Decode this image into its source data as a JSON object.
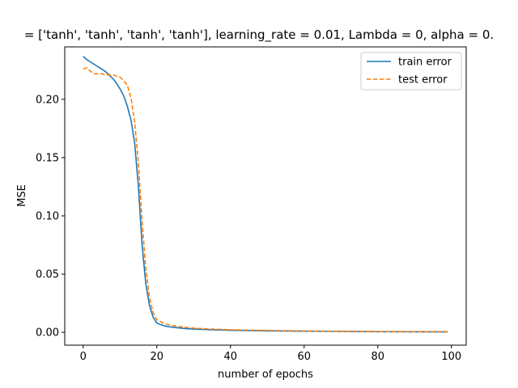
{
  "chart_data": {
    "type": "line",
    "title": "= ['tanh', 'tanh', 'tanh', 'tanh'], learning_rate = 0.01, Lambda = 0, alpha = 0.",
    "xlabel": "number of epochs",
    "ylabel": "MSE",
    "xlim": [
      -5,
      104
    ],
    "ylim": [
      -0.011,
      0.245
    ],
    "xticks": [
      0,
      20,
      40,
      60,
      80,
      100
    ],
    "xtick_labels": [
      "0",
      "20",
      "40",
      "60",
      "80",
      "100"
    ],
    "yticks": [
      0.0,
      0.05,
      0.1,
      0.15,
      0.2
    ],
    "ytick_labels": [
      "0.00",
      "0.05",
      "0.10",
      "0.15",
      "0.20"
    ],
    "grid": false,
    "legend_position": "top-right",
    "series": [
      {
        "name": "train error",
        "color": "#1f77b4",
        "dash": "solid",
        "x": [
          0,
          1,
          2,
          3,
          4,
          5,
          6,
          7,
          8,
          9,
          10,
          11,
          12,
          13,
          14,
          15,
          16,
          17,
          18,
          19,
          20,
          22,
          24,
          26,
          28,
          30,
          35,
          40,
          50,
          60,
          70,
          80,
          90,
          99
        ],
        "y": [
          0.237,
          0.234,
          0.232,
          0.23,
          0.228,
          0.226,
          0.224,
          0.221,
          0.218,
          0.214,
          0.209,
          0.203,
          0.194,
          0.182,
          0.162,
          0.125,
          0.075,
          0.042,
          0.023,
          0.013,
          0.008,
          0.0055,
          0.0045,
          0.0038,
          0.0032,
          0.0028,
          0.0022,
          0.0018,
          0.0013,
          0.001,
          0.0008,
          0.0006,
          0.0005,
          0.0004
        ]
      },
      {
        "name": "test error",
        "color": "#ff7f0e",
        "dash": "dashed",
        "x": [
          0,
          1,
          2,
          3,
          4,
          5,
          6,
          7,
          8,
          9,
          10,
          11,
          12,
          13,
          14,
          15,
          16,
          17,
          18,
          19,
          20,
          22,
          24,
          26,
          28,
          30,
          35,
          40,
          50,
          60,
          70,
          80,
          90,
          99
        ],
        "y": [
          0.226,
          0.227,
          0.224,
          0.222,
          0.222,
          0.222,
          0.221,
          0.221,
          0.221,
          0.22,
          0.219,
          0.216,
          0.212,
          0.201,
          0.18,
          0.145,
          0.095,
          0.055,
          0.03,
          0.017,
          0.011,
          0.0075,
          0.006,
          0.005,
          0.0042,
          0.0036,
          0.0028,
          0.0022,
          0.0016,
          0.0012,
          0.0009,
          0.0007,
          0.0006,
          0.0005
        ]
      }
    ]
  }
}
